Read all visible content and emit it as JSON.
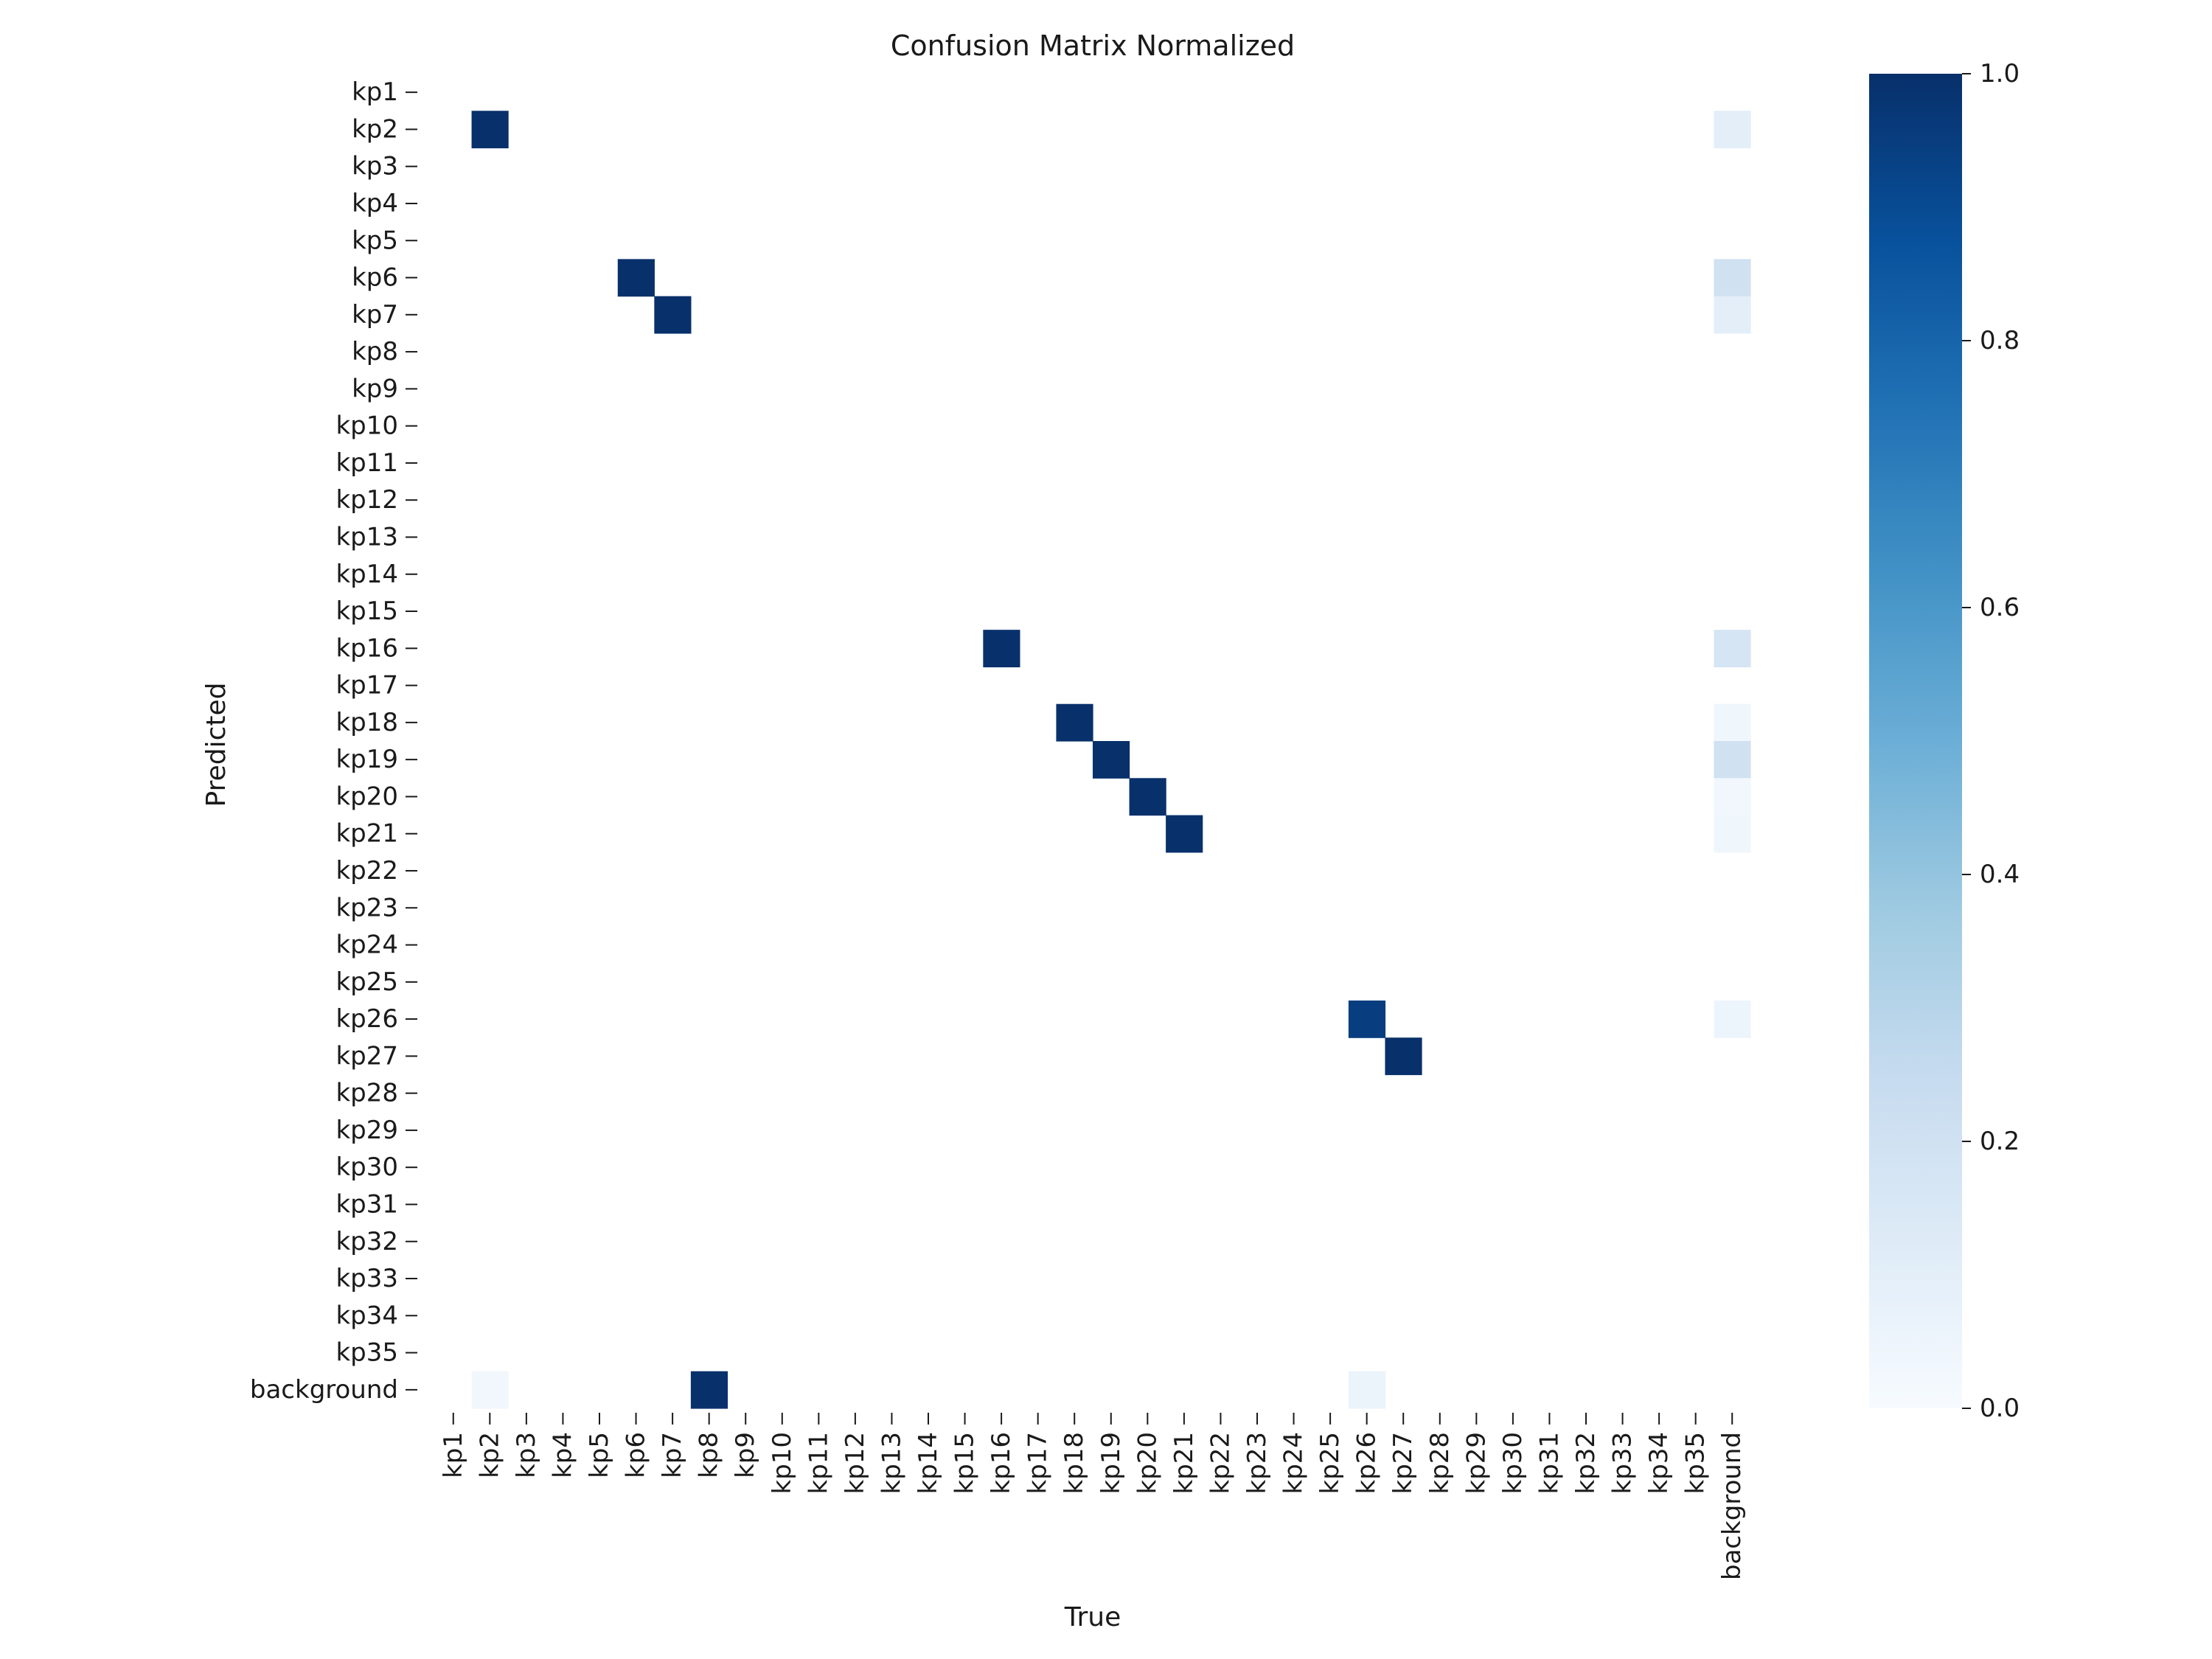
{
  "chart_data": {
    "type": "heatmap",
    "title": "Confusion Matrix Normalized",
    "xlabel": "True",
    "ylabel": "Predicted",
    "x_categories": [
      "kp1",
      "kp2",
      "kp3",
      "kp4",
      "kp5",
      "kp6",
      "kp7",
      "kp8",
      "kp9",
      "kp10",
      "kp11",
      "kp12",
      "kp13",
      "kp14",
      "kp15",
      "kp16",
      "kp17",
      "kp18",
      "kp19",
      "kp20",
      "kp21",
      "kp22",
      "kp23",
      "kp24",
      "kp25",
      "kp26",
      "kp27",
      "kp28",
      "kp29",
      "kp30",
      "kp31",
      "kp32",
      "kp33",
      "kp34",
      "kp35",
      "background"
    ],
    "y_categories": [
      "kp1",
      "kp2",
      "kp3",
      "kp4",
      "kp5",
      "kp6",
      "kp7",
      "kp8",
      "kp9",
      "kp10",
      "kp11",
      "kp12",
      "kp13",
      "kp14",
      "kp15",
      "kp16",
      "kp17",
      "kp18",
      "kp19",
      "kp20",
      "kp21",
      "kp22",
      "kp23",
      "kp24",
      "kp25",
      "kp26",
      "kp27",
      "kp28",
      "kp29",
      "kp30",
      "kp31",
      "kp32",
      "kp33",
      "kp34",
      "kp35",
      "background"
    ],
    "cells": [
      {
        "true": "kp2",
        "predicted": "kp2",
        "value": 1.0
      },
      {
        "true": "background",
        "predicted": "kp2",
        "value": 0.1
      },
      {
        "true": "kp6",
        "predicted": "kp6",
        "value": 1.0
      },
      {
        "true": "background",
        "predicted": "kp6",
        "value": 0.2
      },
      {
        "true": "kp7",
        "predicted": "kp7",
        "value": 1.0
      },
      {
        "true": "background",
        "predicted": "kp7",
        "value": 0.1
      },
      {
        "true": "kp16",
        "predicted": "kp16",
        "value": 1.0
      },
      {
        "true": "background",
        "predicted": "kp16",
        "value": 0.17
      },
      {
        "true": "kp18",
        "predicted": "kp18",
        "value": 1.0
      },
      {
        "true": "background",
        "predicted": "kp18",
        "value": 0.04
      },
      {
        "true": "kp19",
        "predicted": "kp19",
        "value": 1.0
      },
      {
        "true": "background",
        "predicted": "kp19",
        "value": 0.2
      },
      {
        "true": "kp20",
        "predicted": "kp20",
        "value": 1.0
      },
      {
        "true": "background",
        "predicted": "kp20",
        "value": 0.03
      },
      {
        "true": "kp21",
        "predicted": "kp21",
        "value": 1.0
      },
      {
        "true": "background",
        "predicted": "kp21",
        "value": 0.04
      },
      {
        "true": "kp26",
        "predicted": "kp26",
        "value": 0.95
      },
      {
        "true": "background",
        "predicted": "kp26",
        "value": 0.05
      },
      {
        "true": "kp27",
        "predicted": "kp27",
        "value": 1.0
      },
      {
        "true": "kp2",
        "predicted": "background",
        "value": 0.03
      },
      {
        "true": "kp8",
        "predicted": "background",
        "value": 1.0
      },
      {
        "true": "kp26",
        "predicted": "background",
        "value": 0.06
      }
    ],
    "vmin": 0.0,
    "vmax": 1.0,
    "colormap": "Blues",
    "colorbar_ticks": [
      "0.0",
      "0.2",
      "0.4",
      "0.6",
      "0.8",
      "1.0"
    ],
    "grid": false
  }
}
